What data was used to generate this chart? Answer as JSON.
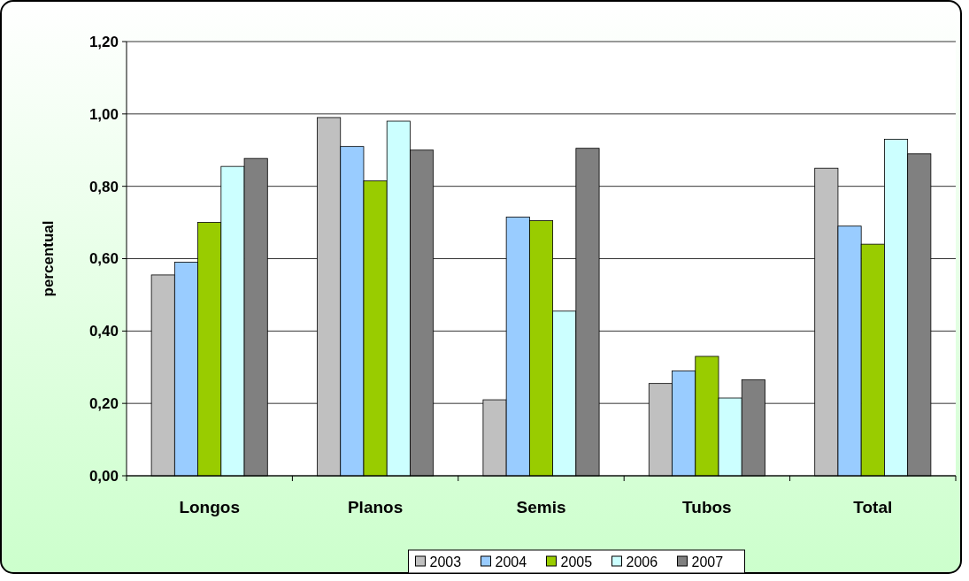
{
  "chart_data": {
    "type": "bar",
    "ylabel": "percentual",
    "categories": [
      "Longos",
      "Planos",
      "Semis",
      "Tubos",
      "Total"
    ],
    "series": [
      {
        "name": "2003",
        "color": "#c0c0c0",
        "values": [
          0.555,
          0.99,
          0.21,
          0.255,
          0.85
        ]
      },
      {
        "name": "2004",
        "color": "#99ccff",
        "values": [
          0.59,
          0.91,
          0.715,
          0.29,
          0.69
        ]
      },
      {
        "name": "2005",
        "color": "#99cc00",
        "values": [
          0.7,
          0.815,
          0.705,
          0.33,
          0.64
        ]
      },
      {
        "name": "2006",
        "color": "#ccffff",
        "values": [
          0.855,
          0.98,
          0.455,
          0.215,
          0.93
        ]
      },
      {
        "name": "2007",
        "color": "#808080",
        "values": [
          0.877,
          0.9,
          0.905,
          0.265,
          0.89
        ]
      }
    ],
    "ylim": [
      0,
      1.2
    ],
    "yticks": [
      {
        "value": 0,
        "label": "0,00"
      },
      {
        "value": 0.2,
        "label": "0,20"
      },
      {
        "value": 0.4,
        "label": "0,40"
      },
      {
        "value": 0.6,
        "label": "0,60"
      },
      {
        "value": 0.8,
        "label": "0,80"
      },
      {
        "value": 1,
        "label": "1,00"
      },
      {
        "value": 1.2,
        "label": "1,20"
      }
    ],
    "grid": "y",
    "legend": "bottom"
  }
}
